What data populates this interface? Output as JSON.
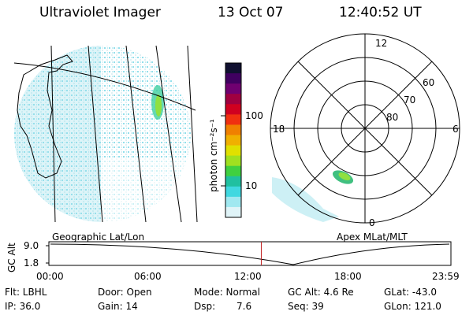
{
  "header": {
    "instrument": "Ultraviolet Imager",
    "date": "13 Oct 07",
    "time": "12:40:52 UT"
  },
  "colorbar": {
    "label": "photon cm⁻²s⁻¹",
    "ticks": [
      "100",
      "10"
    ],
    "colors": [
      "#101030",
      "#400060",
      "#700070",
      "#a00040",
      "#d00020",
      "#f03010",
      "#f08000",
      "#f0b000",
      "#e0e000",
      "#a0e020",
      "#40d040",
      "#20c0a0",
      "#40d8e0",
      "#a0e8f0",
      "#e0f4f8"
    ]
  },
  "polar": {
    "mlt_labels": {
      "top": "12",
      "left": "18",
      "right": "6",
      "bottom": "0"
    },
    "lat_labels": [
      "60",
      "70",
      "80"
    ]
  },
  "timeline": {
    "left_title": "Geographic Lat/Lon",
    "right_title": "Apex MLat/MLT",
    "axis_label": "GC Alt",
    "y_ticks": [
      "9.0",
      "1.8"
    ],
    "x_ticks": [
      "00:00",
      "06:00",
      "12:00",
      "18:00",
      "23:59"
    ],
    "current_time_hours": 12.68,
    "colors": {
      "marker": "#c02020"
    }
  },
  "status": {
    "filter": "Flt: LBHL",
    "ip": "IP: 36.0",
    "door": "Door: Open",
    "gain": "Gain: 14",
    "mode": "Mode: Normal",
    "dsp_label": "Dsp:",
    "dsp_value": "7.6",
    "gc_alt": "GC Alt: 4.6 Re",
    "seq": "Seq: 39",
    "glat": "GLat: -43.0",
    "glon": "GLon: 121.0"
  }
}
